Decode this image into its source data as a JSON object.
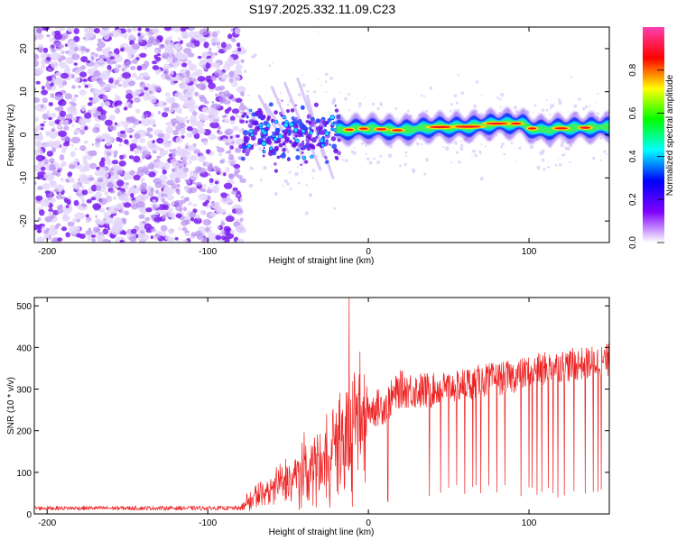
{
  "title": "S197.2025.332.11.09.C23",
  "chart_data": [
    {
      "type": "heatmap",
      "title": "S197.2025.332.11.09.C23",
      "xlabel": "Height of straight line (km)",
      "ylabel": "Frequency (Hz)",
      "xlim": [
        -208,
        150
      ],
      "ylim": [
        -25,
        25
      ],
      "x_ticks": [
        -200,
        -100,
        0,
        100
      ],
      "x_tick_labels": [
        "-200",
        "-100",
        "0",
        "100"
      ],
      "y_ticks": [
        -20,
        -10,
        0,
        10,
        20
      ],
      "y_tick_labels": [
        "-20",
        "-10",
        "0",
        "10",
        "20"
      ],
      "colorbar": {
        "label": "Normalized spectral amplitude",
        "range": [
          0.0,
          1.0
        ],
        "ticks": [
          0.0,
          0.2,
          0.4,
          0.6,
          0.8
        ],
        "tick_labels": [
          "0.0",
          "0.2",
          "0.4",
          "0.6",
          "0.8"
        ],
        "colors": [
          "#ff40b0",
          "#ff0000",
          "#ffff00",
          "#00ff00",
          "#00ffff",
          "#0000ff",
          "#8000ff",
          "#ffffff"
        ]
      },
      "regions": [
        {
          "name": "noise",
          "x": [
            -208,
            -78
          ],
          "amplitude": 0.08
        },
        {
          "name": "transition streaks",
          "x": [
            -78,
            -20
          ],
          "amplitude": 0.25
        },
        {
          "name": "signal band",
          "x": [
            -20,
            150
          ],
          "center_hz": 2,
          "amplitude": 0.9
        }
      ],
      "band_trace": {
        "x": [
          -20,
          0,
          20,
          40,
          60,
          80,
          95,
          105,
          120,
          150
        ],
        "hz": [
          1.0,
          1.5,
          1.0,
          1.8,
          1.8,
          2.6,
          2.6,
          1.0,
          1.5,
          1.8
        ]
      }
    },
    {
      "type": "line",
      "xlabel": "Height of straight line (km)",
      "ylabel": "SNR (10 * v/v)",
      "xlim": [
        -208,
        150
      ],
      "ylim": [
        0,
        520
      ],
      "x_ticks": [
        -200,
        -100,
        0,
        100
      ],
      "x_tick_labels": [
        "-200",
        "-100",
        "0",
        "100"
      ],
      "y_ticks": [
        0,
        100,
        200,
        300,
        400,
        500
      ],
      "y_tick_labels": [
        "0",
        "100",
        "200",
        "300",
        "400",
        "500"
      ],
      "color": "#ee2222",
      "trend": {
        "x": [
          -208,
          -80,
          -75,
          -55,
          -35,
          -25,
          -10,
          0,
          10,
          20,
          35,
          50,
          70,
          90,
          110,
          130,
          150
        ],
        "y": [
          14,
          14,
          30,
          70,
          110,
          150,
          190,
          250,
          260,
          300,
          295,
          305,
          320,
          330,
          350,
          360,
          370
        ]
      },
      "spike": {
        "x": -12,
        "y": 520
      },
      "dropouts_x": [
        38,
        45,
        50,
        55,
        60,
        65,
        67,
        70,
        75,
        80,
        85,
        95,
        100,
        102,
        105,
        108,
        112,
        115,
        118,
        122,
        128,
        135,
        140,
        143,
        145
      ]
    }
  ]
}
